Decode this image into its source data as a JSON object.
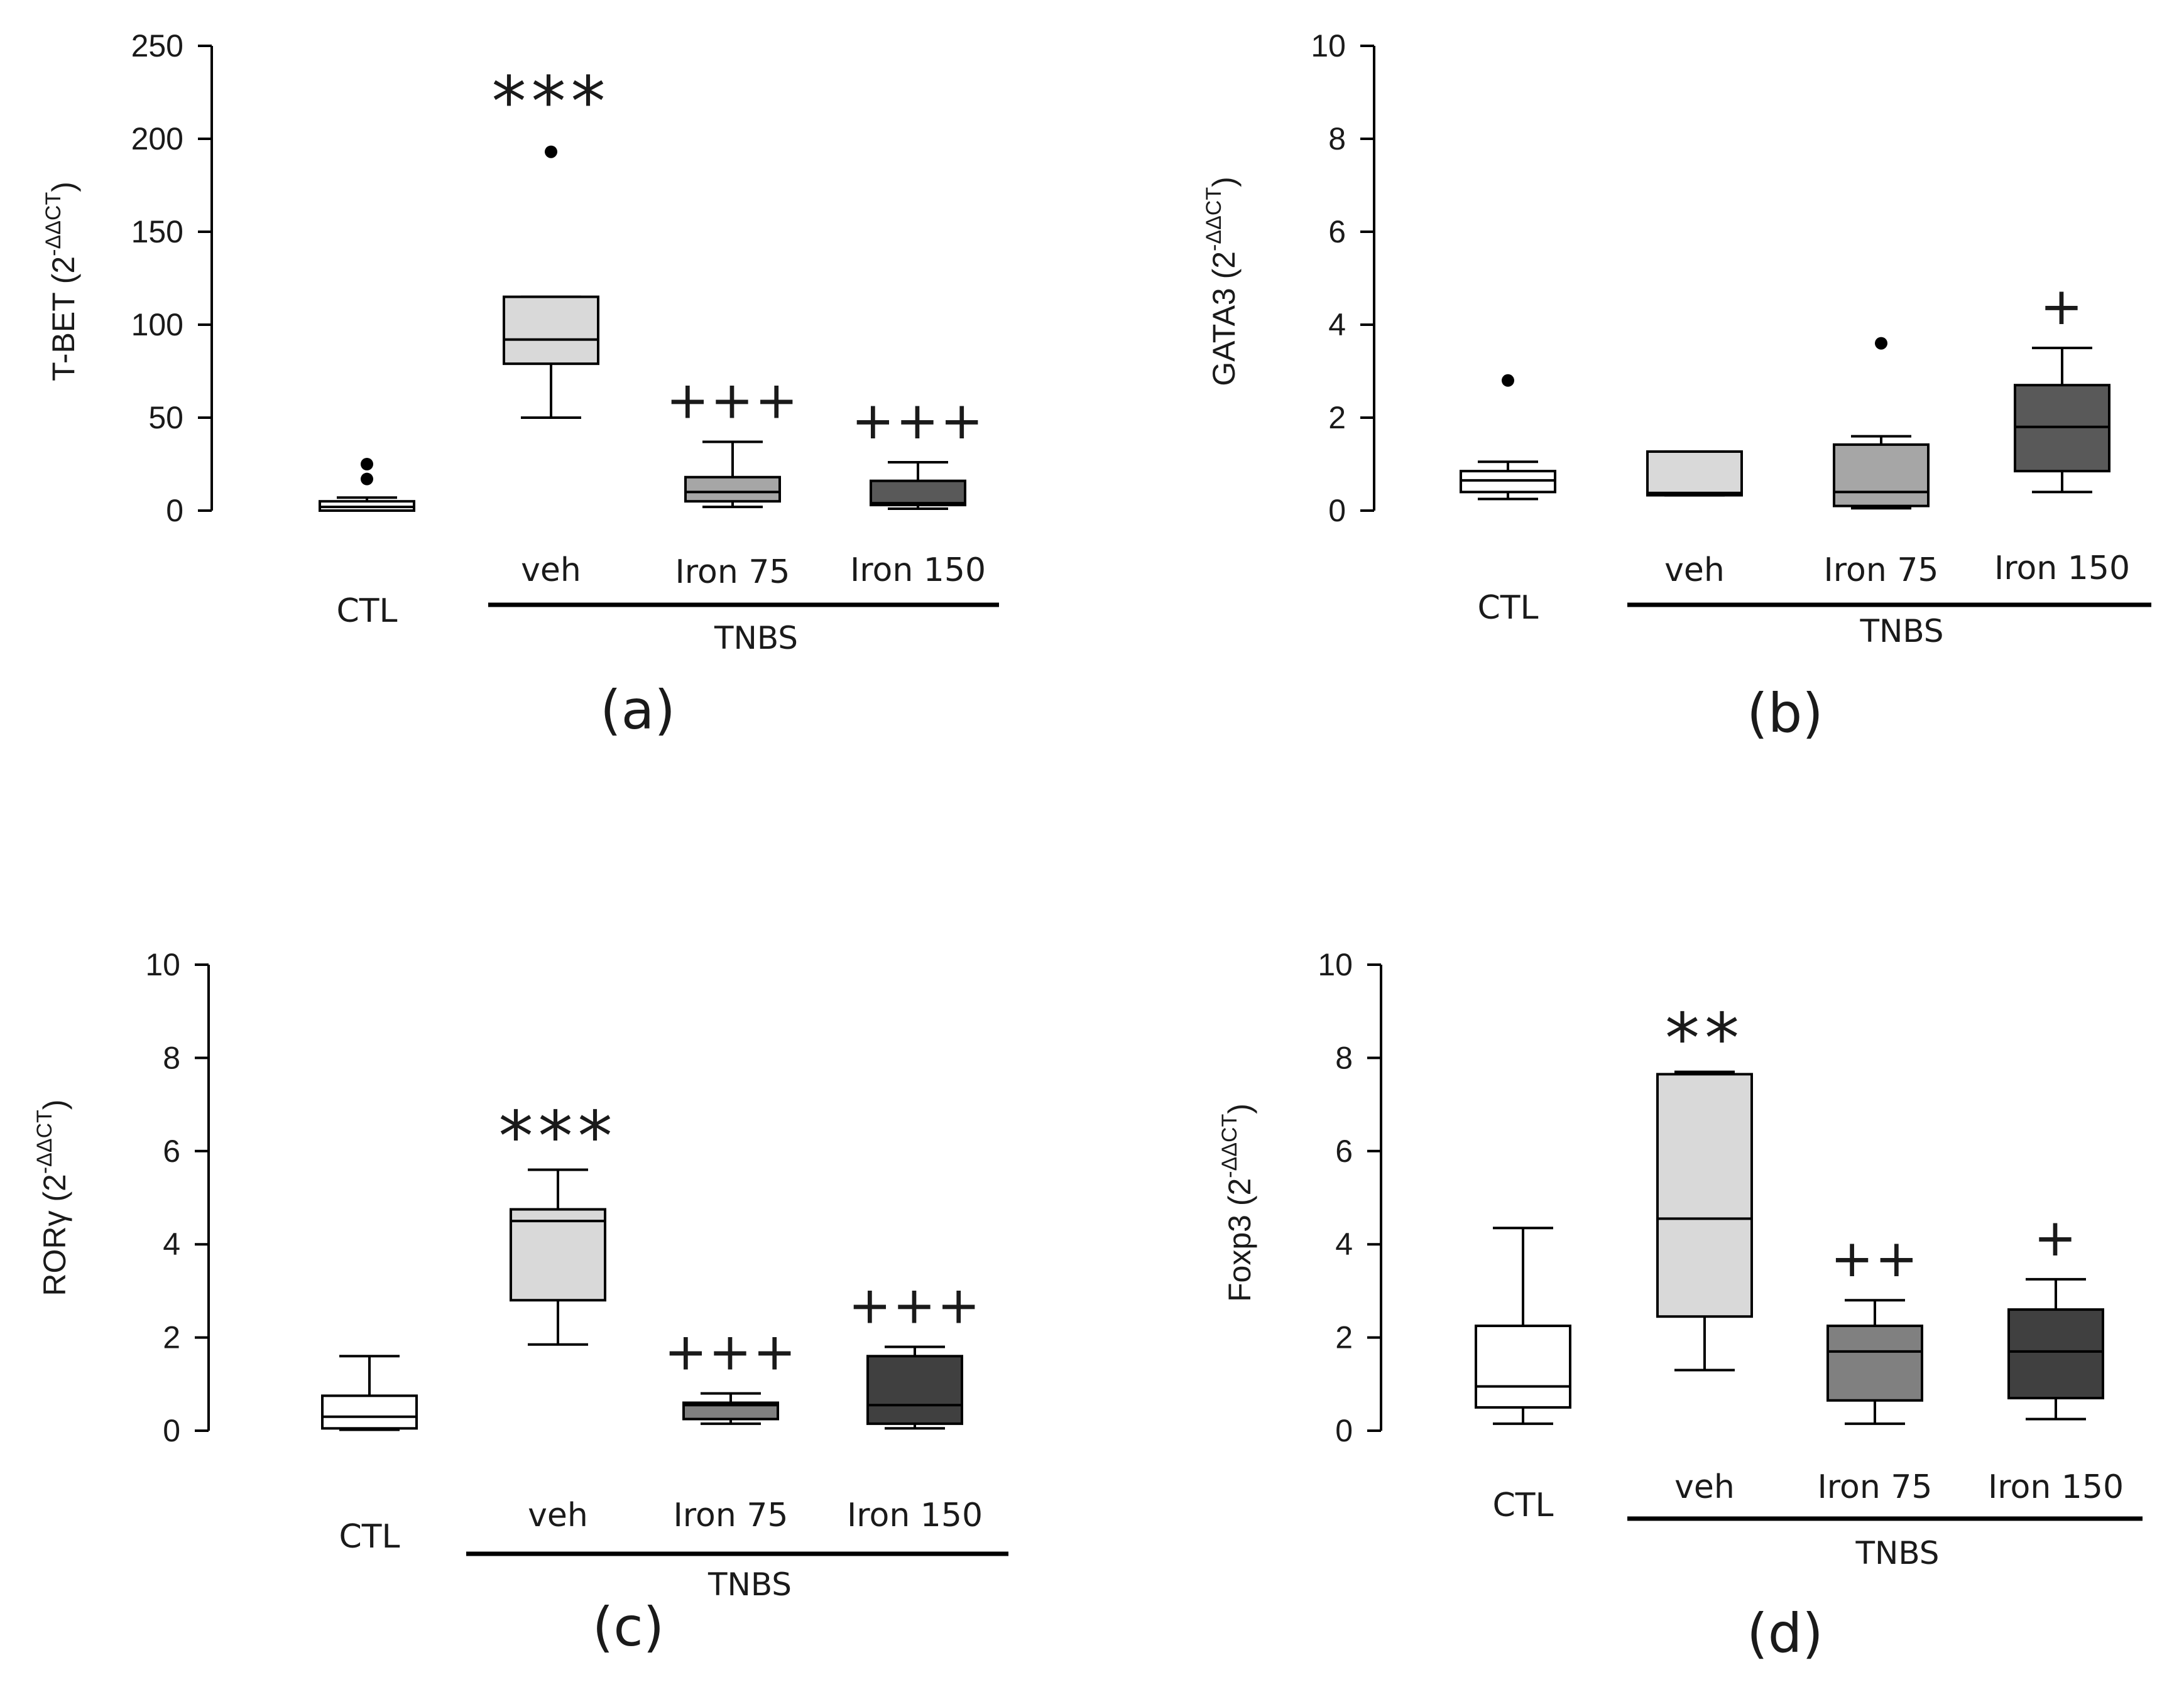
{
  "figure": {
    "group_label": "TNBS",
    "panels": [
      {
        "panel_label": "(a)",
        "chart_data": {
          "type": "box",
          "ylabel_main": "T-BET (2",
          "ylabel_sup": "-ΔΔCT",
          "ylabel_close": ")",
          "ylim": [
            0,
            250
          ],
          "yticks": [
            0,
            50,
            100,
            150,
            200,
            250
          ],
          "categories": [
            "CTL",
            "veh",
            "Iron 75",
            "Iron 150"
          ],
          "boxes": [
            {
              "q1": 0,
              "median": 2,
              "q3": 5,
              "wlow": 0,
              "whigh": 7,
              "outliers": [
                17,
                25
              ],
              "fill": "#ffffff",
              "annotation": ""
            },
            {
              "q1": 79,
              "median": 92,
              "q3": 115,
              "wlow": 50,
              "whigh": 115,
              "outliers": [
                193
              ],
              "fill": "#d9d9d9",
              "annotation": "***"
            },
            {
              "q1": 5,
              "median": 10,
              "q3": 18,
              "wlow": 2,
              "whigh": 37,
              "outliers": [],
              "fill": "#a6a6a6",
              "annotation": "+++"
            },
            {
              "q1": 3,
              "median": 4,
              "q3": 16,
              "wlow": 1,
              "whigh": 26,
              "outliers": [],
              "fill": "#595959",
              "annotation": "+++"
            }
          ]
        }
      },
      {
        "panel_label": "(b)",
        "chart_data": {
          "type": "box",
          "ylabel_main": "GATA3 (2",
          "ylabel_sup": "-ΔΔCT",
          "ylabel_close": ")",
          "ylim": [
            0,
            10
          ],
          "yticks": [
            0,
            2,
            4,
            6,
            8,
            10
          ],
          "categories": [
            "CTL",
            "veh",
            "Iron 75",
            "Iron 150"
          ],
          "boxes": [
            {
              "q1": 0.4,
              "median": 0.65,
              "q3": 0.85,
              "wlow": 0.25,
              "whigh": 1.05,
              "outliers": [
                2.8
              ],
              "fill": "#ffffff",
              "annotation": ""
            },
            {
              "q1": 0.33,
              "median": 0.38,
              "q3": 1.27,
              "wlow": 0.33,
              "whigh": 1.27,
              "outliers": [],
              "fill": "#d9d9d9",
              "annotation": ""
            },
            {
              "q1": 0.1,
              "median": 0.4,
              "q3": 1.42,
              "wlow": 0.05,
              "whigh": 1.6,
              "outliers": [
                3.6
              ],
              "fill": "#a6a6a6",
              "annotation": ""
            },
            {
              "q1": 0.85,
              "median": 1.8,
              "q3": 2.7,
              "wlow": 0.4,
              "whigh": 3.5,
              "outliers": [],
              "fill": "#595959",
              "annotation": "+"
            }
          ]
        }
      },
      {
        "panel_label": "(c)",
        "chart_data": {
          "type": "box",
          "ylabel_main": "RORγ (2",
          "ylabel_sup": "-ΔΔCT",
          "ylabel_close": ")",
          "ylim": [
            0,
            10
          ],
          "yticks": [
            0,
            2,
            4,
            6,
            8,
            10
          ],
          "categories": [
            "CTL",
            "veh",
            "Iron 75",
            "Iron 150"
          ],
          "boxes": [
            {
              "q1": 0.05,
              "median": 0.3,
              "q3": 0.75,
              "wlow": 0.02,
              "whigh": 1.6,
              "outliers": [],
              "fill": "#ffffff",
              "annotation": ""
            },
            {
              "q1": 2.8,
              "median": 4.5,
              "q3": 4.75,
              "wlow": 1.85,
              "whigh": 5.6,
              "outliers": [],
              "fill": "#d9d9d9",
              "annotation": "***"
            },
            {
              "q1": 0.25,
              "median": 0.55,
              "q3": 0.6,
              "wlow": 0.15,
              "whigh": 0.8,
              "outliers": [],
              "fill": "#808080",
              "annotation": "+++"
            },
            {
              "q1": 0.15,
              "median": 0.55,
              "q3": 1.6,
              "wlow": 0.05,
              "whigh": 1.8,
              "outliers": [],
              "fill": "#404040",
              "annotation": "+++"
            }
          ]
        }
      },
      {
        "panel_label": "(d)",
        "chart_data": {
          "type": "box",
          "ylabel_main": "Foxp3 (2",
          "ylabel_sup": "-ΔΔCT",
          "ylabel_close": ")",
          "ylim": [
            0,
            10
          ],
          "yticks": [
            0,
            2,
            4,
            6,
            8,
            10
          ],
          "categories": [
            "CTL",
            "veh",
            "Iron 75",
            "Iron 150"
          ],
          "boxes": [
            {
              "q1": 0.5,
              "median": 0.95,
              "q3": 2.25,
              "wlow": 0.15,
              "whigh": 4.35,
              "outliers": [],
              "fill": "#ffffff",
              "annotation": ""
            },
            {
              "q1": 2.45,
              "median": 4.55,
              "q3": 7.65,
              "wlow": 1.3,
              "whigh": 7.7,
              "outliers": [],
              "fill": "#d9d9d9",
              "annotation": "**"
            },
            {
              "q1": 0.65,
              "median": 1.7,
              "q3": 2.25,
              "wlow": 0.15,
              "whigh": 2.8,
              "outliers": [],
              "fill": "#808080",
              "annotation": "++"
            },
            {
              "q1": 0.7,
              "median": 1.7,
              "q3": 2.6,
              "wlow": 0.25,
              "whigh": 3.25,
              "outliers": [],
              "fill": "#404040",
              "annotation": "+"
            }
          ]
        }
      }
    ]
  }
}
